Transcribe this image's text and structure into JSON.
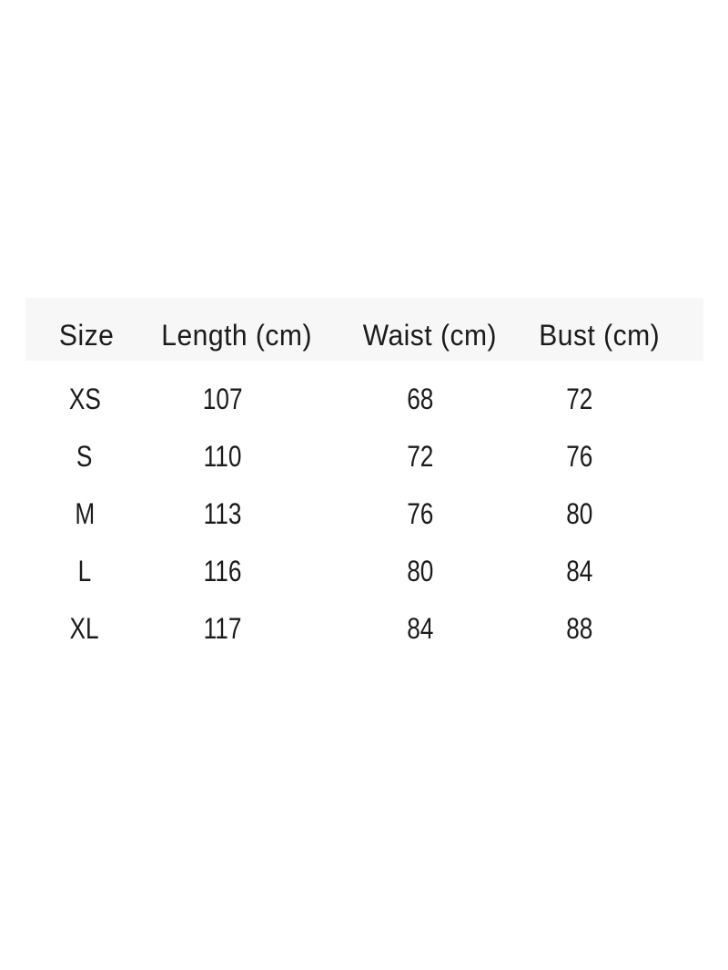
{
  "style": {
    "header_bg": "#f7f7f7",
    "text_color": "#1b1b1b",
    "page_bg": "#ffffff"
  },
  "chart_data": {
    "type": "table",
    "columns": [
      "Size",
      "Length (cm)",
      "Waist (cm)",
      "Bust (cm)"
    ],
    "rows": [
      {
        "size": "XS",
        "length": "107",
        "waist": "68",
        "bust": "72"
      },
      {
        "size": "S",
        "length": "110",
        "waist": "72",
        "bust": "76"
      },
      {
        "size": "M",
        "length": "113",
        "waist": "76",
        "bust": "80"
      },
      {
        "size": "L",
        "length": "116",
        "waist": "80",
        "bust": "84"
      },
      {
        "size": "XL",
        "length": "117",
        "waist": "84",
        "bust": "88"
      }
    ]
  }
}
